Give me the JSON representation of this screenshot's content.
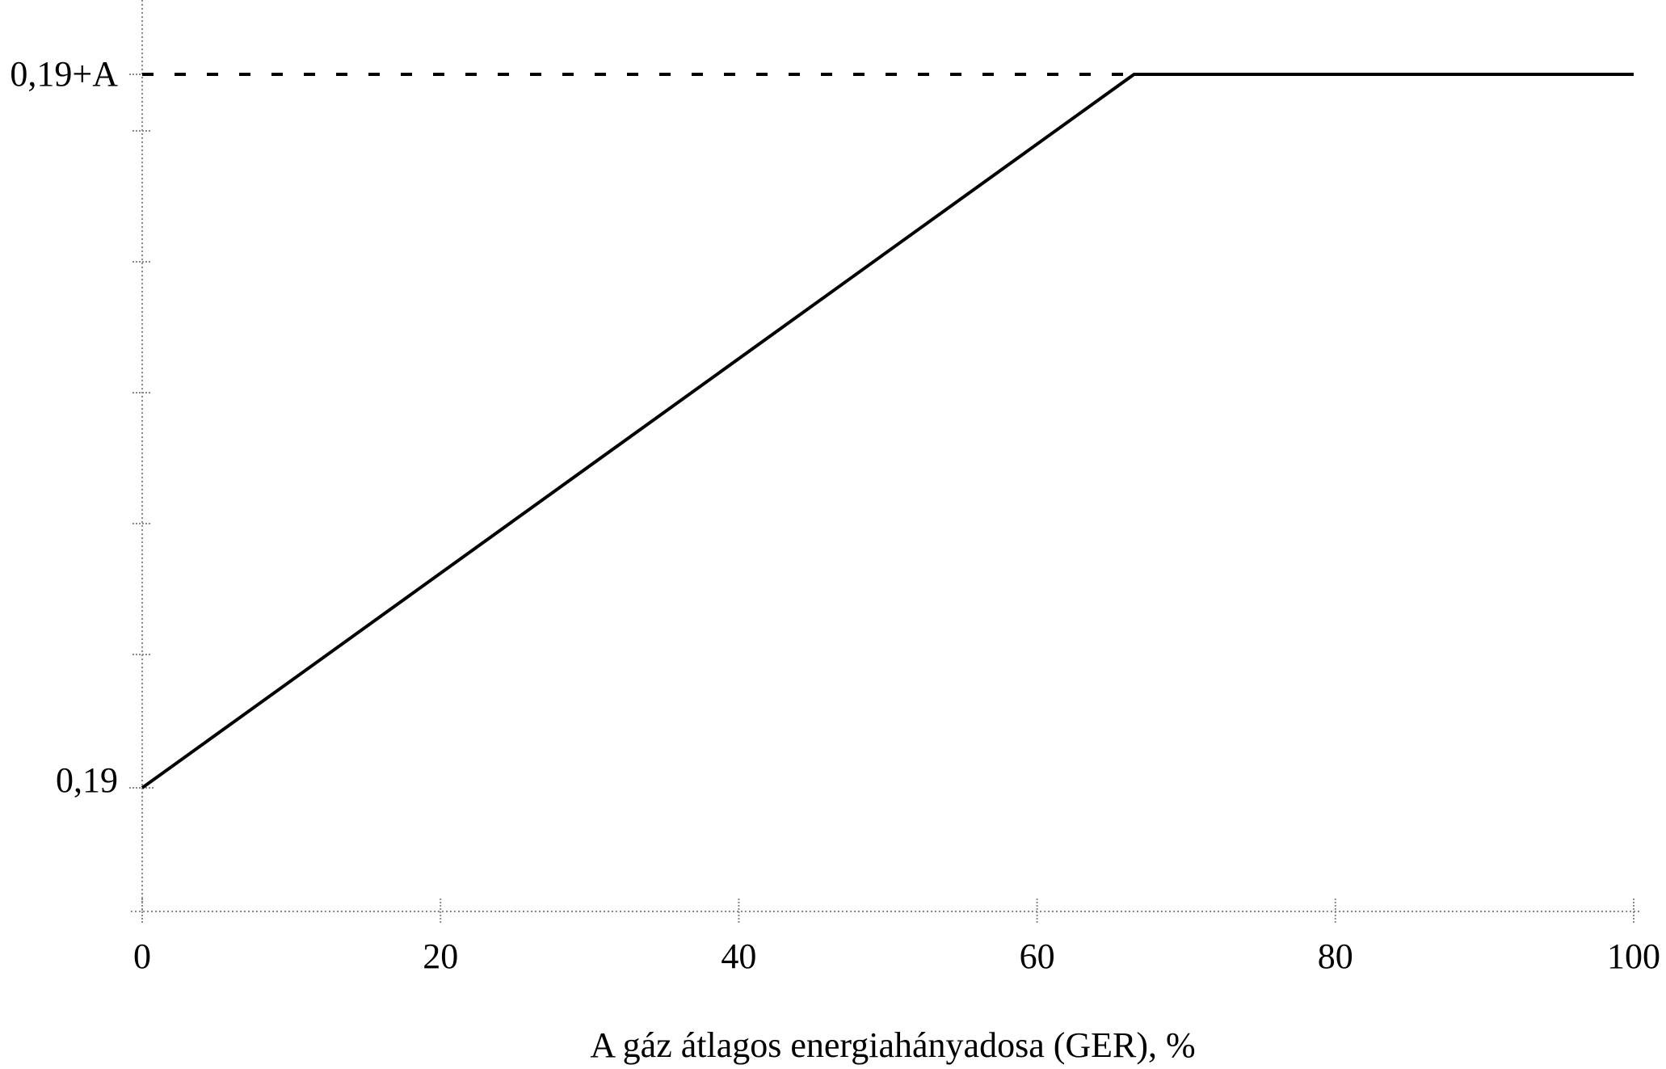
{
  "chart_data": {
    "type": "line",
    "title": "",
    "xlabel": "A gáz átlagos energiahányadosa (GER), %",
    "ylabel": "",
    "xlim": [
      0,
      100
    ],
    "x_ticks": [
      0,
      20,
      40,
      60,
      80,
      100
    ],
    "x_tick_labels": [
      "0",
      "20",
      "40",
      "60",
      "80",
      "100"
    ],
    "y_tick_labels": [
      "0,19+A",
      "0,19"
    ],
    "y_ticks": [
      "0,19+A",
      "0,19"
    ],
    "grid": false,
    "series": [
      {
        "style": "solid",
        "color": "#000000",
        "points": [
          {
            "x": 0,
            "y": "0,19"
          },
          {
            "x": 66.5,
            "y": "0,19+A"
          },
          {
            "x": 100,
            "y": "0,19+A"
          }
        ]
      },
      {
        "style": "dashed",
        "color": "#000000",
        "points": [
          {
            "x": 0,
            "y": "0,19+A"
          },
          {
            "x": 100,
            "y": "0,19+A"
          }
        ]
      }
    ]
  }
}
